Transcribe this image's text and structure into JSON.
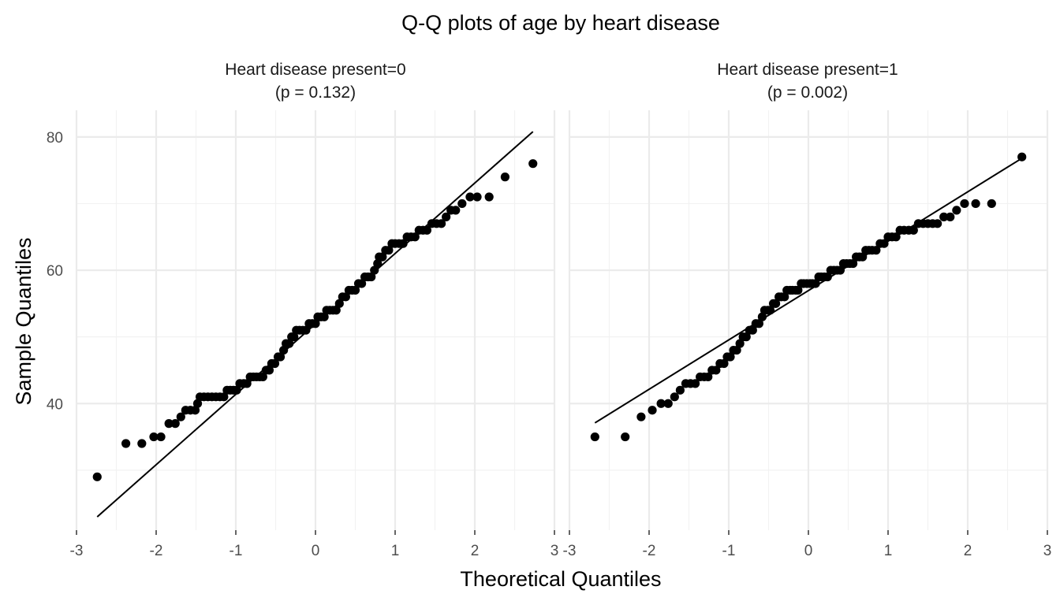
{
  "chart_data": {
    "type": "scatter",
    "title": "Q-Q plots of age by heart disease",
    "xlabel": "Theoretical Quantiles",
    "ylabel": "Sample Quantiles",
    "xlim": [
      -3,
      3
    ],
    "ylim": [
      21,
      84
    ],
    "x_ticks": [
      -3,
      -2,
      -1,
      0,
      1,
      2,
      3
    ],
    "y_ticks": [
      40,
      60,
      80
    ],
    "grid": true,
    "legend": "none",
    "panels": [
      {
        "strip_line1": "Heart disease present=0",
        "strip_line2": "(p = 0.132)",
        "reference_line": {
          "x": [
            -2.74,
            2.73
          ],
          "y": [
            23.0,
            80.8
          ]
        },
        "points": [
          [
            -2.74,
            29
          ],
          [
            -2.38,
            34
          ],
          [
            -2.18,
            34
          ],
          [
            -2.03,
            35
          ],
          [
            -1.94,
            35
          ],
          [
            -1.84,
            37
          ],
          [
            -1.76,
            37
          ],
          [
            -1.69,
            38
          ],
          [
            -1.63,
            39
          ],
          [
            -1.57,
            39
          ],
          [
            -1.51,
            39
          ],
          [
            -1.48,
            40
          ],
          [
            -1.45,
            41
          ],
          [
            -1.4,
            41
          ],
          [
            -1.35,
            41
          ],
          [
            -1.3,
            41
          ],
          [
            -1.25,
            41
          ],
          [
            -1.2,
            41
          ],
          [
            -1.15,
            41
          ],
          [
            -1.11,
            42
          ],
          [
            -1.07,
            42
          ],
          [
            -1.03,
            42
          ],
          [
            -0.99,
            42
          ],
          [
            -0.95,
            43
          ],
          [
            -0.9,
            43
          ],
          [
            -0.86,
            43
          ],
          [
            -0.82,
            44
          ],
          [
            -0.78,
            44
          ],
          [
            -0.74,
            44
          ],
          [
            -0.7,
            44
          ],
          [
            -0.66,
            44
          ],
          [
            -0.62,
            45
          ],
          [
            -0.58,
            45
          ],
          [
            -0.55,
            46
          ],
          [
            -0.51,
            46
          ],
          [
            -0.47,
            47
          ],
          [
            -0.44,
            47
          ],
          [
            -0.4,
            48
          ],
          [
            -0.37,
            49
          ],
          [
            -0.33,
            49
          ],
          [
            -0.3,
            50
          ],
          [
            -0.27,
            50
          ],
          [
            -0.24,
            51
          ],
          [
            -0.2,
            51
          ],
          [
            -0.16,
            51
          ],
          [
            -0.12,
            51
          ],
          [
            -0.08,
            52
          ],
          [
            -0.04,
            52
          ],
          [
            0.0,
            52
          ],
          [
            0.03,
            53
          ],
          [
            0.07,
            53
          ],
          [
            0.11,
            53
          ],
          [
            0.14,
            54
          ],
          [
            0.18,
            54
          ],
          [
            0.22,
            54
          ],
          [
            0.26,
            54
          ],
          [
            0.3,
            55
          ],
          [
            0.34,
            56
          ],
          [
            0.38,
            56
          ],
          [
            0.42,
            57
          ],
          [
            0.46,
            57
          ],
          [
            0.5,
            57
          ],
          [
            0.54,
            58
          ],
          [
            0.58,
            58
          ],
          [
            0.62,
            59
          ],
          [
            0.66,
            59
          ],
          [
            0.7,
            59
          ],
          [
            0.74,
            60
          ],
          [
            0.78,
            61
          ],
          [
            0.8,
            62
          ],
          [
            0.84,
            62
          ],
          [
            0.88,
            63
          ],
          [
            0.92,
            63
          ],
          [
            0.96,
            64
          ],
          [
            1.0,
            64
          ],
          [
            1.05,
            64
          ],
          [
            1.1,
            64
          ],
          [
            1.15,
            65
          ],
          [
            1.2,
            65
          ],
          [
            1.25,
            65
          ],
          [
            1.3,
            66
          ],
          [
            1.35,
            66
          ],
          [
            1.4,
            66
          ],
          [
            1.46,
            67
          ],
          [
            1.52,
            67
          ],
          [
            1.58,
            67
          ],
          [
            1.64,
            68
          ],
          [
            1.7,
            69
          ],
          [
            1.76,
            69
          ],
          [
            1.84,
            70
          ],
          [
            1.94,
            71
          ],
          [
            2.03,
            71
          ],
          [
            2.18,
            71
          ],
          [
            2.38,
            74
          ],
          [
            2.73,
            76
          ]
        ]
      },
      {
        "strip_line1": "Heart disease present=1",
        "strip_line2": "(p = 0.002)",
        "reference_line": {
          "x": [
            -2.68,
            2.68
          ],
          "y": [
            37.1,
            76.8
          ]
        },
        "points": [
          [
            -2.68,
            35
          ],
          [
            -2.3,
            35
          ],
          [
            -2.1,
            38
          ],
          [
            -1.96,
            39
          ],
          [
            -1.85,
            40
          ],
          [
            -1.76,
            40
          ],
          [
            -1.68,
            41
          ],
          [
            -1.61,
            42
          ],
          [
            -1.54,
            43
          ],
          [
            -1.48,
            43
          ],
          [
            -1.42,
            43
          ],
          [
            -1.36,
            44
          ],
          [
            -1.31,
            44
          ],
          [
            -1.26,
            44
          ],
          [
            -1.21,
            45
          ],
          [
            -1.16,
            45
          ],
          [
            -1.11,
            46
          ],
          [
            -1.06,
            46
          ],
          [
            -1.02,
            47
          ],
          [
            -0.98,
            47
          ],
          [
            -0.94,
            48
          ],
          [
            -0.9,
            48
          ],
          [
            -0.86,
            49
          ],
          [
            -0.82,
            50
          ],
          [
            -0.78,
            50
          ],
          [
            -0.74,
            51
          ],
          [
            -0.7,
            51
          ],
          [
            -0.66,
            52
          ],
          [
            -0.62,
            52
          ],
          [
            -0.58,
            53
          ],
          [
            -0.55,
            54
          ],
          [
            -0.51,
            54
          ],
          [
            -0.48,
            54
          ],
          [
            -0.44,
            55
          ],
          [
            -0.41,
            55
          ],
          [
            -0.37,
            56
          ],
          [
            -0.34,
            56
          ],
          [
            -0.3,
            56
          ],
          [
            -0.27,
            57
          ],
          [
            -0.23,
            57
          ],
          [
            -0.2,
            57
          ],
          [
            -0.16,
            57
          ],
          [
            -0.13,
            57
          ],
          [
            -0.09,
            58
          ],
          [
            -0.06,
            58
          ],
          [
            -0.02,
            58
          ],
          [
            0.02,
            58
          ],
          [
            0.05,
            58
          ],
          [
            0.09,
            58
          ],
          [
            0.13,
            59
          ],
          [
            0.16,
            59
          ],
          [
            0.2,
            59
          ],
          [
            0.24,
            59
          ],
          [
            0.28,
            60
          ],
          [
            0.32,
            60
          ],
          [
            0.36,
            60
          ],
          [
            0.4,
            60
          ],
          [
            0.44,
            61
          ],
          [
            0.48,
            61
          ],
          [
            0.52,
            61
          ],
          [
            0.56,
            61
          ],
          [
            0.6,
            62
          ],
          [
            0.64,
            62
          ],
          [
            0.68,
            62
          ],
          [
            0.72,
            63
          ],
          [
            0.76,
            63
          ],
          [
            0.8,
            63
          ],
          [
            0.85,
            63
          ],
          [
            0.9,
            64
          ],
          [
            0.95,
            64
          ],
          [
            1.0,
            65
          ],
          [
            1.05,
            65
          ],
          [
            1.1,
            65
          ],
          [
            1.15,
            66
          ],
          [
            1.2,
            66
          ],
          [
            1.26,
            66
          ],
          [
            1.32,
            66
          ],
          [
            1.38,
            67
          ],
          [
            1.44,
            67
          ],
          [
            1.5,
            67
          ],
          [
            1.56,
            67
          ],
          [
            1.62,
            67
          ],
          [
            1.7,
            68
          ],
          [
            1.78,
            68
          ],
          [
            1.86,
            69
          ],
          [
            1.96,
            70
          ],
          [
            2.1,
            70
          ],
          [
            2.3,
            70
          ],
          [
            2.68,
            77
          ]
        ]
      }
    ]
  }
}
